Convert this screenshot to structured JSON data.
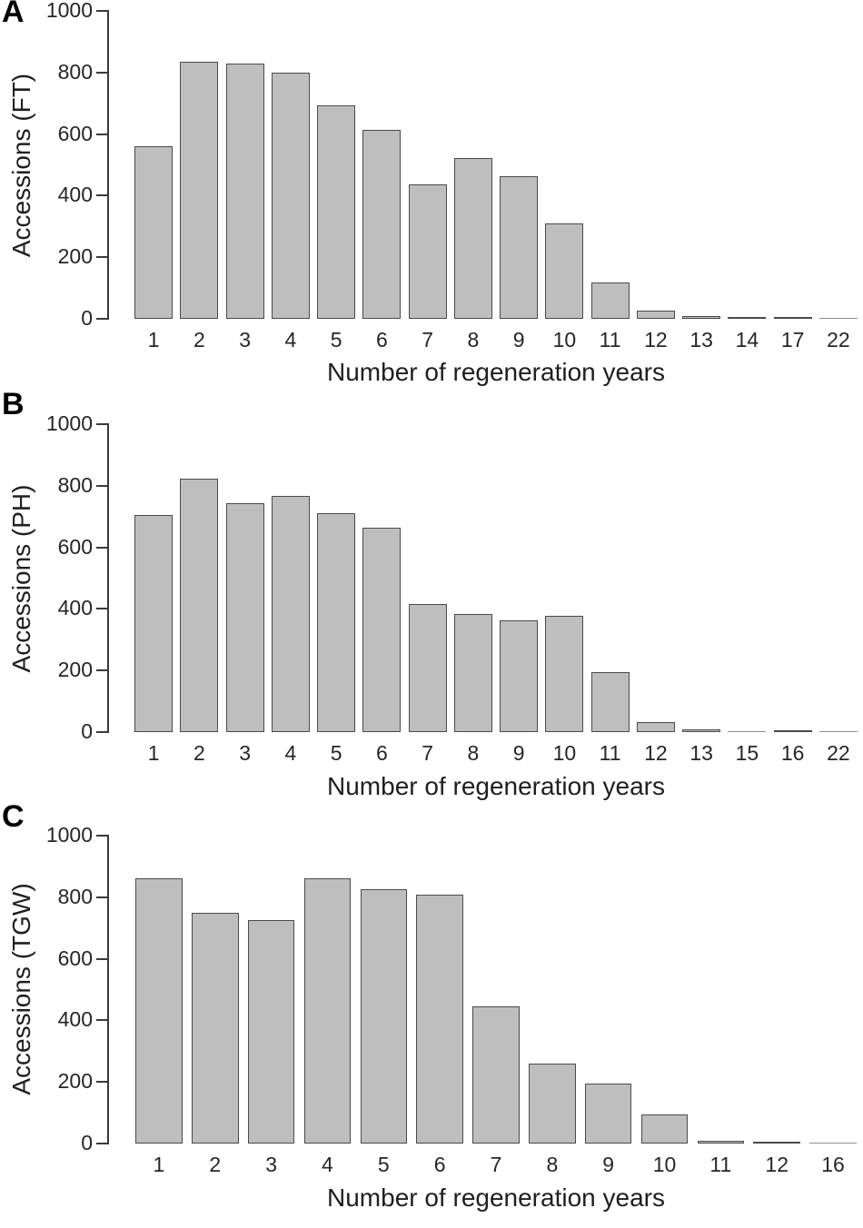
{
  "figure": {
    "xlabel": "Number of regeneration years",
    "bar_fill": "#bebebe",
    "bar_border": "#4a4a4a",
    "axis_color": "#3a3a3a"
  },
  "chart_data": [
    {
      "panel": "A",
      "type": "bar",
      "title": "",
      "ylabel": "Accessions (FT)",
      "xlabel": "Number of regeneration years",
      "categories": [
        "1",
        "2",
        "3",
        "4",
        "5",
        "6",
        "7",
        "8",
        "9",
        "10",
        "11",
        "12",
        "13",
        "14",
        "17",
        "22"
      ],
      "values": [
        560,
        835,
        830,
        800,
        692,
        615,
        438,
        522,
        462,
        310,
        118,
        27,
        10,
        5,
        5,
        2
      ],
      "ylim": [
        0,
        1000
      ],
      "yticks": [
        0,
        200,
        400,
        600,
        800,
        1000
      ],
      "grid": false,
      "legend": "none"
    },
    {
      "panel": "B",
      "type": "bar",
      "title": "",
      "ylabel": "Accessions (PH)",
      "xlabel": "Number of regeneration years",
      "categories": [
        "1",
        "2",
        "3",
        "4",
        "5",
        "6",
        "7",
        "8",
        "9",
        "10",
        "11",
        "12",
        "13",
        "15",
        "16",
        "22"
      ],
      "values": [
        706,
        822,
        742,
        766,
        712,
        664,
        415,
        383,
        362,
        378,
        194,
        32,
        10,
        3,
        6,
        3
      ],
      "ylim": [
        0,
        1000
      ],
      "yticks": [
        0,
        200,
        400,
        600,
        800,
        1000
      ],
      "grid": false,
      "legend": "none"
    },
    {
      "panel": "C",
      "type": "bar",
      "title": "",
      "ylabel": "Accessions (TGW)",
      "xlabel": "Number of regeneration years",
      "categories": [
        "1",
        "2",
        "3",
        "4",
        "5",
        "6",
        "7",
        "8",
        "9",
        "10",
        "11",
        "12",
        "16"
      ],
      "values": [
        860,
        748,
        727,
        860,
        827,
        808,
        446,
        260,
        196,
        95,
        8,
        5,
        2
      ],
      "ylim": [
        0,
        1000
      ],
      "yticks": [
        0,
        200,
        400,
        600,
        800,
        1000
      ],
      "grid": false,
      "legend": "none"
    }
  ]
}
